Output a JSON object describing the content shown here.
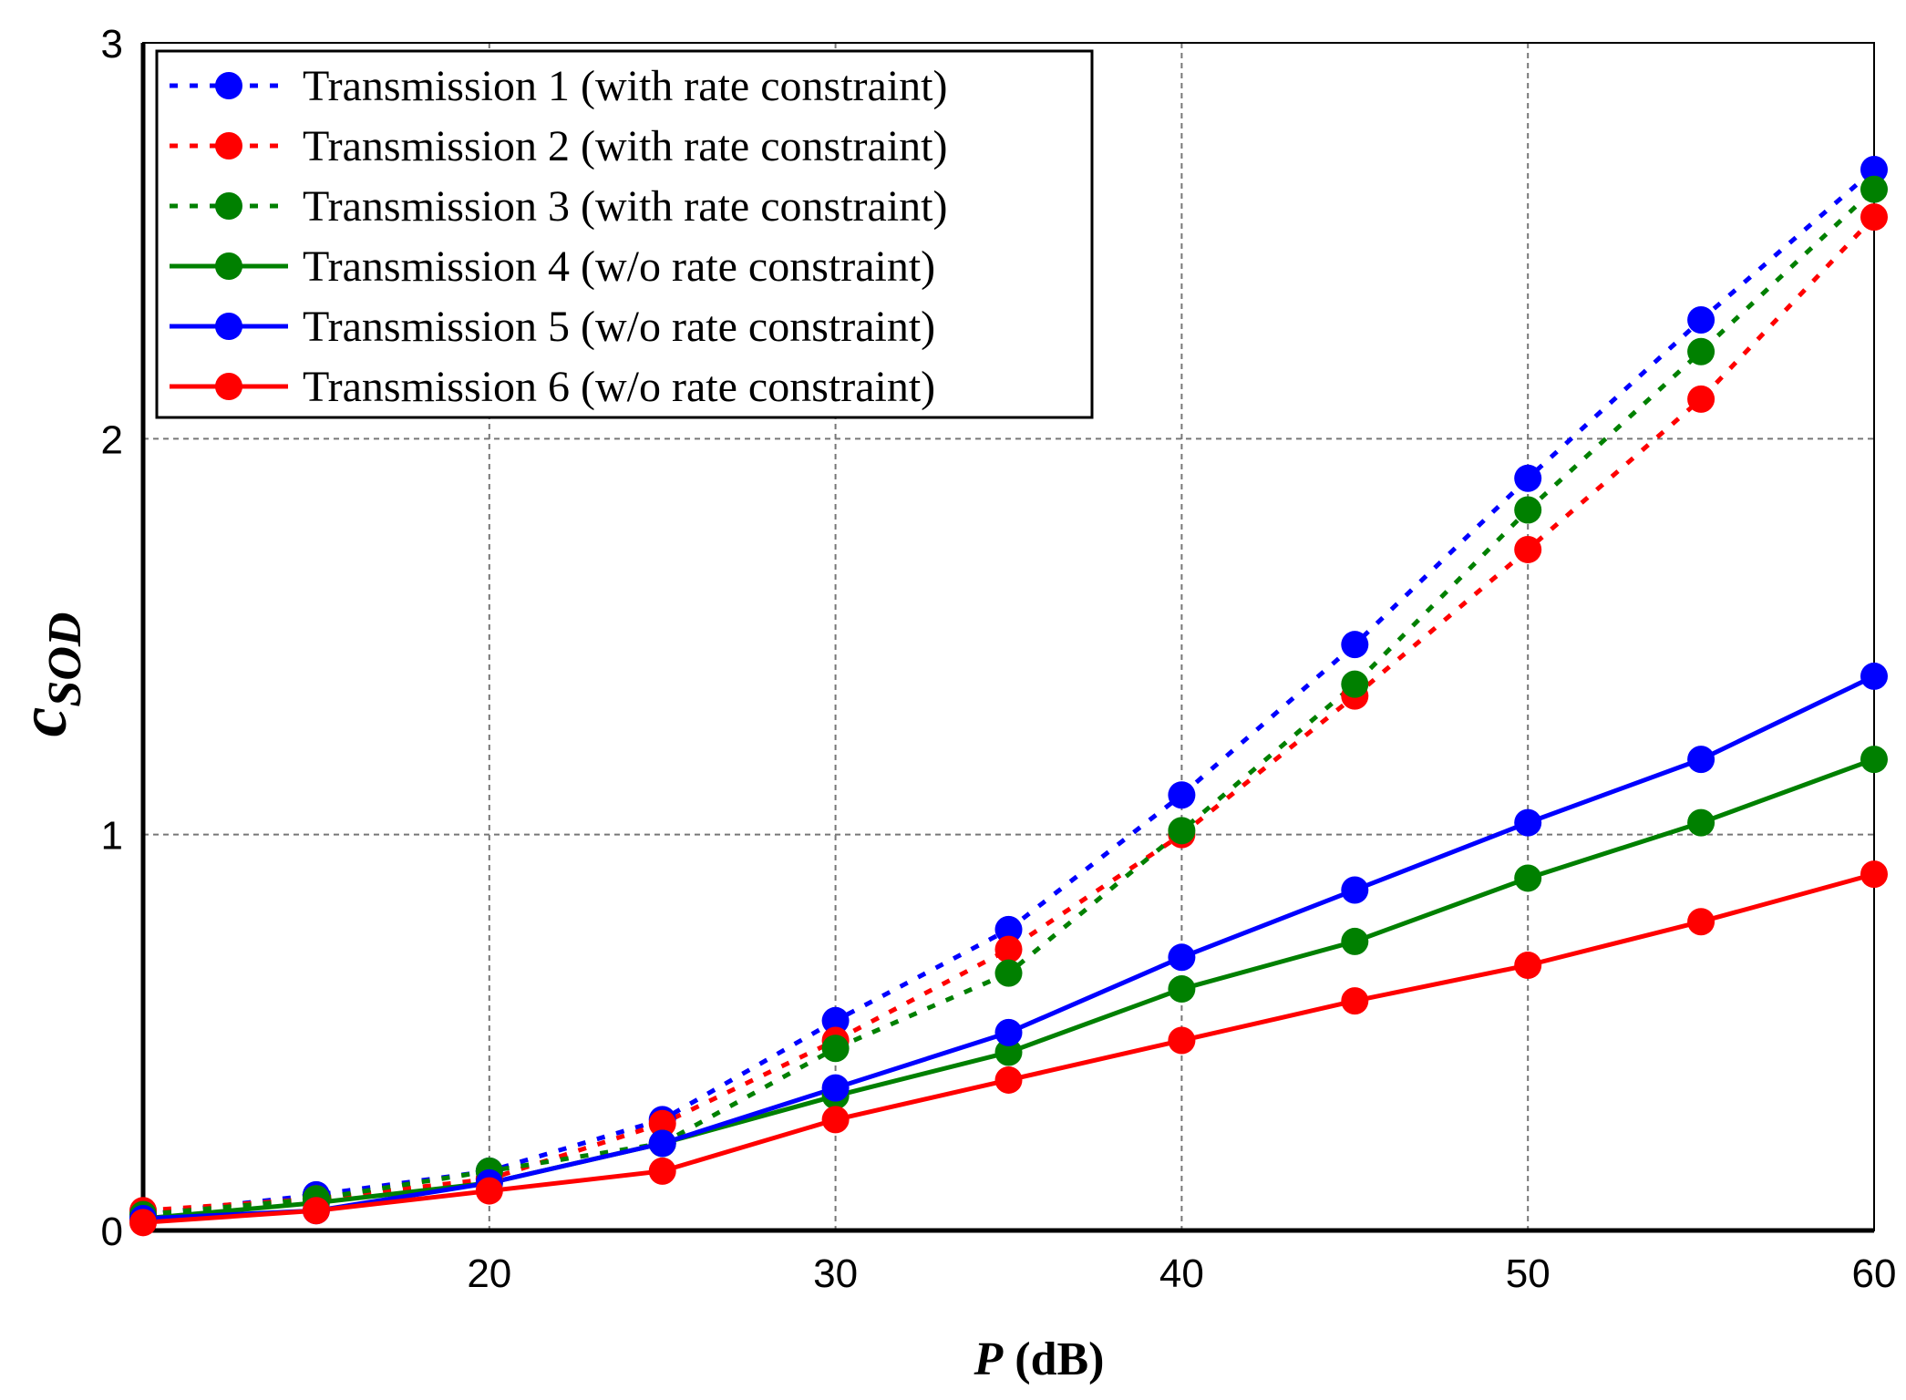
{
  "chart_data": {
    "type": "line",
    "xlabel": {
      "main": "P",
      "unit": "(dB)"
    },
    "ylabel": {
      "main": "c",
      "sub": "SOD"
    },
    "x": [
      10,
      15,
      20,
      25,
      30,
      35,
      40,
      45,
      50,
      55,
      60
    ],
    "xlim": [
      10,
      60
    ],
    "ylim": [
      0,
      3
    ],
    "xticks": [
      "20",
      "30",
      "40",
      "50",
      "60"
    ],
    "yticks": [
      "0",
      "1",
      "2",
      "3"
    ],
    "grid": true,
    "legend_position": "top-left",
    "series": [
      {
        "name": "Transmission 1 (with rate constraint)",
        "color": "#0000FF",
        "style": "dotted",
        "values": [
          0.04,
          0.09,
          0.15,
          0.28,
          0.53,
          0.76,
          1.1,
          1.48,
          1.9,
          2.3,
          2.68
        ]
      },
      {
        "name": "Transmission 2 (with rate constraint)",
        "color": "#FF0000",
        "style": "dotted",
        "values": [
          0.05,
          0.08,
          0.13,
          0.27,
          0.48,
          0.71,
          1.0,
          1.35,
          1.72,
          2.1,
          2.56
        ]
      },
      {
        "name": "Transmission 3 (with rate constraint)",
        "color": "#008000",
        "style": "dotted",
        "values": [
          0.04,
          0.08,
          0.15,
          0.22,
          0.46,
          0.65,
          1.01,
          1.38,
          1.82,
          2.22,
          2.63
        ]
      },
      {
        "name": "Transmission 4 (w/o rate constraint)",
        "color": "#008000",
        "style": "solid",
        "values": [
          0.03,
          0.07,
          0.12,
          0.22,
          0.34,
          0.45,
          0.61,
          0.73,
          0.89,
          1.03,
          1.19
        ]
      },
      {
        "name": "Transmission 5 (w/o rate constraint)",
        "color": "#0000FF",
        "style": "solid",
        "values": [
          0.03,
          0.05,
          0.12,
          0.22,
          0.36,
          0.5,
          0.69,
          0.86,
          1.03,
          1.19,
          1.4
        ]
      },
      {
        "name": "Transmission 6 (w/o rate constraint)",
        "color": "#FF0000",
        "style": "solid",
        "values": [
          0.02,
          0.05,
          0.1,
          0.15,
          0.28,
          0.38,
          0.48,
          0.58,
          0.67,
          0.78,
          0.9
        ]
      }
    ]
  }
}
